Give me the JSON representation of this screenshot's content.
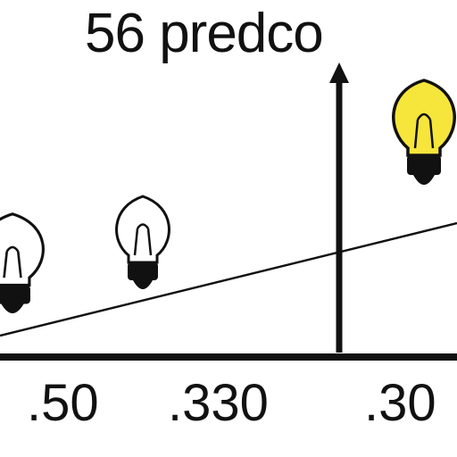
{
  "title": "56 predco",
  "labels": [
    ".50",
    ".330",
    ".30"
  ],
  "colors": {
    "ink": "#111111",
    "lit_bulb": "#f6e53a",
    "unlit_bulb": "#ffffff",
    "background": "#ffffff"
  },
  "icons": [
    "lightbulb-icon",
    "lightbulb-icon",
    "lightbulb-lit-icon",
    "arrow-up-icon"
  ]
}
